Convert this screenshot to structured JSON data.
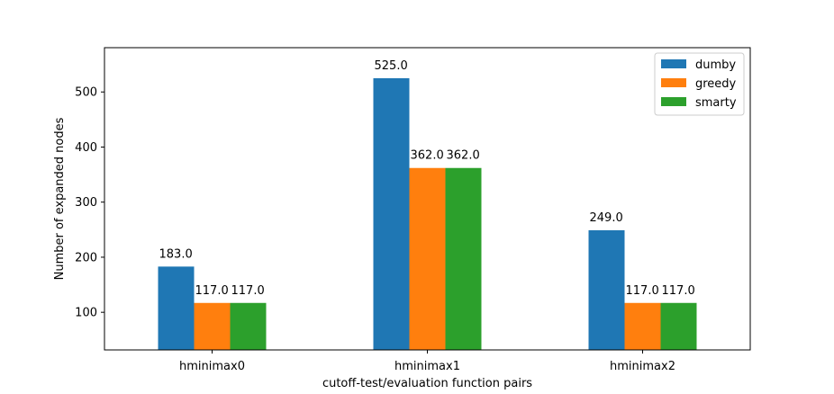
{
  "chart_data": {
    "type": "bar",
    "categories": [
      "hminimax0",
      "hminimax1",
      "hminimax2"
    ],
    "series": [
      {
        "name": "dumby",
        "values": [
          183.0,
          525.0,
          249.0
        ],
        "color": "#1f77b4"
      },
      {
        "name": "greedy",
        "values": [
          117.0,
          362.0,
          117.0
        ],
        "color": "#ff7f0e"
      },
      {
        "name": "smarty",
        "values": [
          117.0,
          362.0,
          117.0
        ],
        "color": "#2ca02c"
      }
    ],
    "data_labels": [
      [
        "183.0",
        "525.0",
        "249.0"
      ],
      [
        "117.0",
        "362.0",
        "117.0"
      ],
      [
        "117.0",
        "362.0",
        "117.0"
      ]
    ],
    "title": "",
    "xlabel": "cutoff-test/evaluation function pairs",
    "ylabel": "Number of expanded nodes",
    "ylim": [
      31.7,
      580.4
    ],
    "yticks": [
      100,
      200,
      300,
      400,
      500
    ],
    "grid": false,
    "legend_position": "upper right"
  }
}
